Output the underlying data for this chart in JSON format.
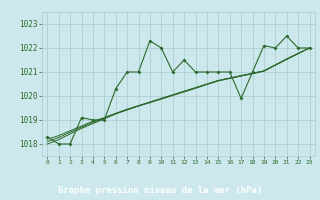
{
  "x": [
    0,
    1,
    2,
    3,
    4,
    5,
    6,
    7,
    8,
    9,
    10,
    11,
    12,
    13,
    14,
    15,
    16,
    17,
    18,
    19,
    20,
    21,
    22,
    23
  ],
  "series1": [
    1018.3,
    1018.0,
    1018.0,
    1019.1,
    1019.0,
    1019.0,
    1020.3,
    1021.0,
    1021.0,
    1022.3,
    1022.0,
    1021.0,
    1021.5,
    1021.0,
    1021.0,
    1021.0,
    1021.0,
    1019.9,
    1021.0,
    1022.1,
    1022.0,
    1022.5,
    1022.0,
    1022.0
  ],
  "trend1": [
    1018.2,
    1018.35,
    1018.55,
    1018.75,
    1018.95,
    1019.1,
    1019.28,
    1019.45,
    1019.6,
    1019.75,
    1019.9,
    1020.05,
    1020.2,
    1020.35,
    1020.5,
    1020.65,
    1020.75,
    1020.85,
    1020.95,
    1021.05,
    1021.3,
    1021.55,
    1021.78,
    1022.0
  ],
  "trend2": [
    1018.0,
    1018.18,
    1018.42,
    1018.65,
    1018.85,
    1019.05,
    1019.25,
    1019.42,
    1019.58,
    1019.72,
    1019.87,
    1020.02,
    1020.17,
    1020.32,
    1020.48,
    1020.63,
    1020.73,
    1020.83,
    1020.93,
    1021.03,
    1021.28,
    1021.52,
    1021.76,
    1022.0
  ],
  "trend3": [
    1018.1,
    1018.27,
    1018.49,
    1018.7,
    1018.9,
    1019.08,
    1019.27,
    1019.43,
    1019.59,
    1019.74,
    1019.89,
    1020.04,
    1020.19,
    1020.34,
    1020.49,
    1020.64,
    1020.74,
    1020.84,
    1020.94,
    1021.04,
    1021.29,
    1021.53,
    1021.77,
    1022.0
  ],
  "ylim": [
    1017.5,
    1023.5
  ],
  "yticks": [
    1018,
    1019,
    1020,
    1021,
    1022,
    1023
  ],
  "xticks": [
    0,
    1,
    2,
    3,
    4,
    5,
    6,
    7,
    8,
    9,
    10,
    11,
    12,
    13,
    14,
    15,
    16,
    17,
    18,
    19,
    20,
    21,
    22,
    23
  ],
  "line_color": "#2d6a2d",
  "bg_color": "#cce8ec",
  "grid_color": "#a8ccce",
  "label_bg": "#2d6a2d",
  "label_fg": "#ffffff",
  "xlabel": "Graphe pression niveau de la mer (hPa)"
}
